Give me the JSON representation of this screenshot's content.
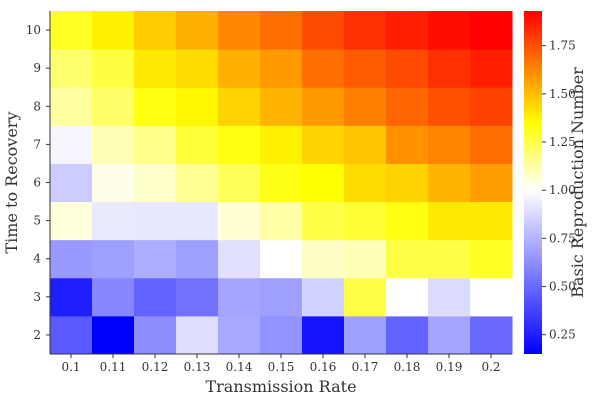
{
  "chart_data": {
    "type": "heatmap",
    "xlabel": "Transmission Rate",
    "ylabel": "Time to Recovery",
    "colorbar_label": "Basic Reproduction Number",
    "x": [
      "0.1",
      "0.11",
      "0.12",
      "0.13",
      "0.14",
      "0.15",
      "0.16",
      "0.17",
      "0.18",
      "0.19",
      "0.2"
    ],
    "y": [
      "2",
      "3",
      "4",
      "5",
      "6",
      "7",
      "8",
      "9",
      "10"
    ],
    "z": [
      [
        0.45,
        0.15,
        0.62,
        0.89,
        0.71,
        0.64,
        0.22,
        0.68,
        0.48,
        0.7,
        0.5
      ],
      [
        0.25,
        0.6,
        0.48,
        0.53,
        0.7,
        0.68,
        0.85,
        1.25,
        1.0,
        0.88,
        1.0
      ],
      [
        0.66,
        0.68,
        0.73,
        0.68,
        0.9,
        1.0,
        1.08,
        1.1,
        1.25,
        1.25,
        1.3
      ],
      [
        1.05,
        0.93,
        0.92,
        0.92,
        1.06,
        1.12,
        1.25,
        1.28,
        1.33,
        1.4,
        1.4
      ],
      [
        0.83,
        1.03,
        1.07,
        1.15,
        1.23,
        1.32,
        1.35,
        1.43,
        1.45,
        1.52,
        1.57
      ],
      [
        0.97,
        1.1,
        1.16,
        1.27,
        1.33,
        1.38,
        1.45,
        1.48,
        1.6,
        1.63,
        1.68
      ],
      [
        1.13,
        1.21,
        1.33,
        1.37,
        1.45,
        1.52,
        1.58,
        1.64,
        1.7,
        1.75,
        1.78
      ],
      [
        1.2,
        1.26,
        1.4,
        1.43,
        1.53,
        1.58,
        1.68,
        1.72,
        1.76,
        1.82,
        1.86
      ],
      [
        1.3,
        1.38,
        1.47,
        1.53,
        1.62,
        1.68,
        1.76,
        1.82,
        1.86,
        1.9,
        1.95
      ]
    ],
    "zlim": [
      0.15,
      1.93
    ],
    "colorbar_ticks": [
      "0.25",
      "0.50",
      "0.75",
      "1.00",
      "1.25",
      "1.50",
      "1.75"
    ],
    "colormap": [
      {
        "v": 0.15,
        "color": "#0000ff"
      },
      {
        "v": 1.0,
        "color": "#ffffff"
      },
      {
        "v": 1.35,
        "color": "#ffff00"
      },
      {
        "v": 1.93,
        "color": "#ff0000"
      }
    ],
    "legend": "colorbar-right",
    "grid": false
  }
}
